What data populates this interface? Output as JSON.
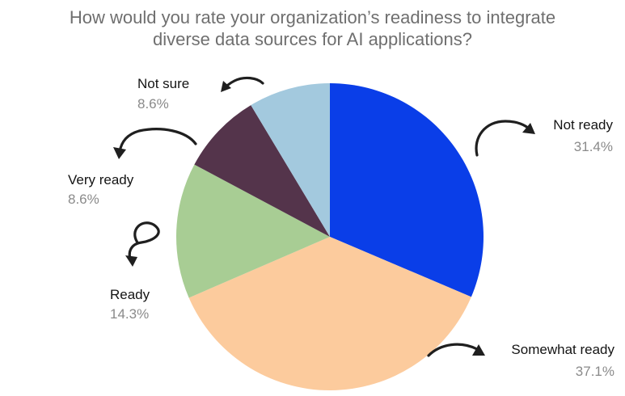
{
  "chart_data": {
    "type": "pie",
    "title": "How would you rate your organization’s readiness to integrate diverse data sources for AI applications?",
    "title_lines": [
      "How would you rate your organization’s readiness to integrate",
      "diverse data sources for AI applications?"
    ],
    "categories": [
      "Not ready",
      "Somewhat ready",
      "Ready",
      "Very ready",
      "Not sure"
    ],
    "values": [
      31.4,
      37.1,
      14.3,
      8.6,
      8.6
    ],
    "value_labels": [
      "31.4%",
      "37.1%",
      "14.3%",
      "8.6%",
      "8.6%"
    ],
    "colors": [
      "#0a3ee8",
      "#fccb9d",
      "#a8cd94",
      "#54344b",
      "#a3c9de"
    ],
    "legend": "none",
    "grid": false
  }
}
